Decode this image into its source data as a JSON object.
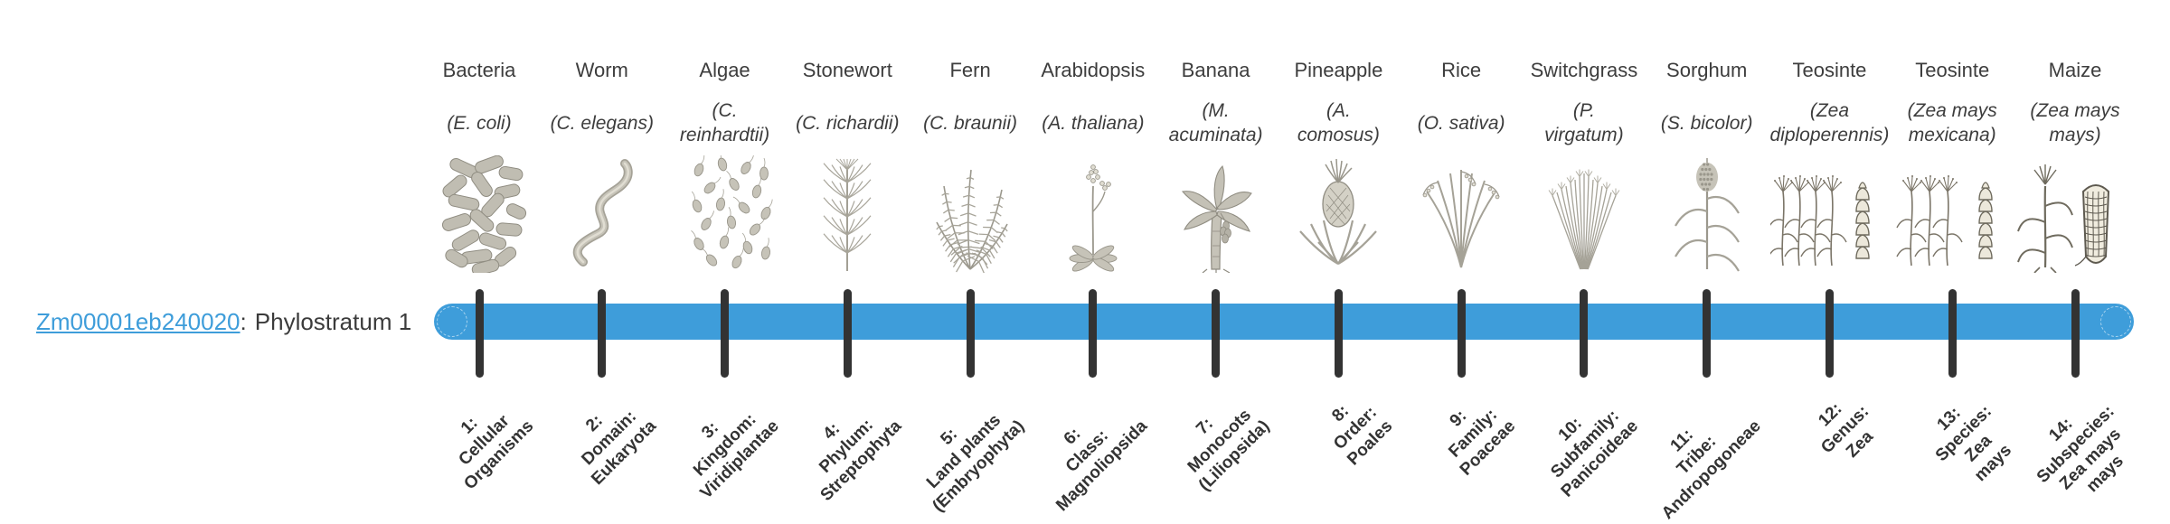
{
  "gene_label": {
    "id": "Zm00001eb240020",
    "separator": ":",
    "phylostratum": "Phylostratum 1"
  },
  "timeline": {
    "bar_color": "#3E9DDA",
    "tick_color": "#333333",
    "text_color": "#3B3B3B",
    "link_color": "#3E9DDA",
    "stratum_label_color": "#333333",
    "tick_count": 14
  },
  "taxa": [
    {
      "name": "Bacteria",
      "species": "(E. coli)",
      "illustration": "bacteria-illustration",
      "stratum_label": "1:\nCellular\nOrganisms"
    },
    {
      "name": "Worm",
      "species": "(C. elegans)",
      "illustration": "worm-illustration",
      "stratum_label": "2:\nDomain:\nEukaryota"
    },
    {
      "name": "Algae",
      "species": "(C.\nreinhardtii)",
      "illustration": "algae-illustration",
      "stratum_label": "3:\nKingdom:\nViridiplantae"
    },
    {
      "name": "Stonewort",
      "species": "(C. richardii)",
      "illustration": "stonewort-illustration",
      "stratum_label": "4:\nPhylum:\nStreptophyta"
    },
    {
      "name": "Fern",
      "species": "(C. braunii)",
      "illustration": "fern-illustration",
      "stratum_label": "5:\nLand plants\n(Embryophyta)"
    },
    {
      "name": "Arabidopsis",
      "species": "(A. thaliana)",
      "illustration": "arabidopsis-illustration",
      "stratum_label": "6:\nClass:\nMagnoliopsida"
    },
    {
      "name": "Banana",
      "species": "(M.\nacuminata)",
      "illustration": "banana-illustration",
      "stratum_label": "7:\nMonocots\n(Liliopsida)"
    },
    {
      "name": "Pineapple",
      "species": "(A.\ncomosus)",
      "illustration": "pineapple-illustration",
      "stratum_label": "8:\nOrder:\nPoales"
    },
    {
      "name": "Rice",
      "species": "(O. sativa)",
      "illustration": "rice-illustration",
      "stratum_label": "9:\nFamily:\nPoaceae"
    },
    {
      "name": "Switchgrass",
      "species": "(P.\nvirgatum)",
      "illustration": "switchgrass-illustration",
      "stratum_label": "10:\nSubfamily:\nPanicoideae"
    },
    {
      "name": "Sorghum",
      "species": "(S. bicolor)",
      "illustration": "sorghum-illustration",
      "stratum_label": "11:\nTribe:\nAndropogoneae"
    },
    {
      "name": "Teosinte",
      "species": "(Zea\ndiploperennis)",
      "illustration": "teosinte-diploperennis-illustration",
      "stratum_label": "12:\nGenus:\nZea"
    },
    {
      "name": "Teosinte",
      "species": "(Zea mays\nmexicana)",
      "illustration": "teosinte-mexicana-illustration",
      "stratum_label": "13:\nSpecies:\nZea\nmays"
    },
    {
      "name": "Maize",
      "species": "(Zea mays\nmays)",
      "illustration": "maize-illustration",
      "stratum_label": "14:\nSubspecies:\nZea mays\nmays"
    }
  ]
}
